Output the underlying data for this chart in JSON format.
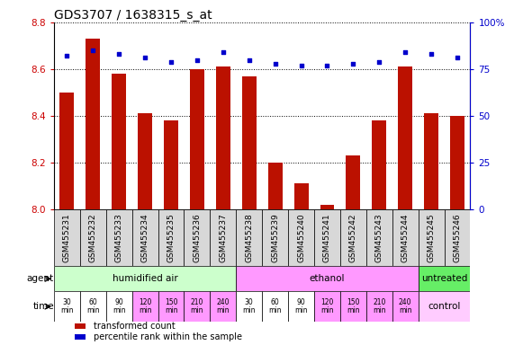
{
  "title": "GDS3707 / 1638315_s_at",
  "samples": [
    "GSM455231",
    "GSM455232",
    "GSM455233",
    "GSM455234",
    "GSM455235",
    "GSM455236",
    "GSM455237",
    "GSM455238",
    "GSM455239",
    "GSM455240",
    "GSM455241",
    "GSM455242",
    "GSM455243",
    "GSM455244",
    "GSM455245",
    "GSM455246"
  ],
  "transformed_count": [
    8.5,
    8.73,
    8.58,
    8.41,
    8.38,
    8.6,
    8.61,
    8.57,
    8.2,
    8.11,
    8.02,
    8.23,
    8.38,
    8.61,
    8.41,
    8.4
  ],
  "percentile_rank": [
    82,
    85,
    83,
    81,
    79,
    80,
    84,
    80,
    78,
    77,
    77,
    78,
    79,
    84,
    83,
    81
  ],
  "ylim_left": [
    8.0,
    8.8
  ],
  "ylim_right": [
    0,
    100
  ],
  "yticks_left": [
    8.0,
    8.2,
    8.4,
    8.6,
    8.8
  ],
  "yticks_right": [
    0,
    25,
    50,
    75,
    100
  ],
  "bar_color": "#bb1100",
  "dot_color": "#0000cc",
  "bar_bottom": 8.0,
  "agent_groups": [
    {
      "label": "humidified air",
      "start": 0,
      "end": 7,
      "color": "#ccffcc"
    },
    {
      "label": "ethanol",
      "start": 7,
      "end": 14,
      "color": "#ff99ff"
    },
    {
      "label": "untreated",
      "start": 14,
      "end": 16,
      "color": "#66ee66"
    }
  ],
  "time_labels": [
    "30\nmin",
    "60\nmin",
    "90\nmin",
    "120\nmin",
    "150\nmin",
    "210\nmin",
    "240\nmin",
    "30\nmin",
    "60\nmin",
    "90\nmin",
    "120\nmin",
    "150\nmin",
    "210\nmin",
    "240\nmin"
  ],
  "time_colors": [
    "#ffffff",
    "#ffffff",
    "#ffffff",
    "#ff99ff",
    "#ff99ff",
    "#ff99ff",
    "#ff99ff",
    "#ffffff",
    "#ffffff",
    "#ffffff",
    "#ff99ff",
    "#ff99ff",
    "#ff99ff",
    "#ff99ff"
  ],
  "control_label": "control",
  "control_color": "#ffccff",
  "legend_items": [
    {
      "label": "transformed count",
      "color": "#bb1100"
    },
    {
      "label": "percentile rank within the sample",
      "color": "#0000cc"
    }
  ],
  "background_color": "#ffffff",
  "tick_label_color_left": "#cc0000",
  "tick_label_color_right": "#0000cc",
  "title_fontsize": 10,
  "tick_fontsize": 7.5,
  "sample_label_fontsize": 6.5,
  "row_label_fontsize": 7.5
}
